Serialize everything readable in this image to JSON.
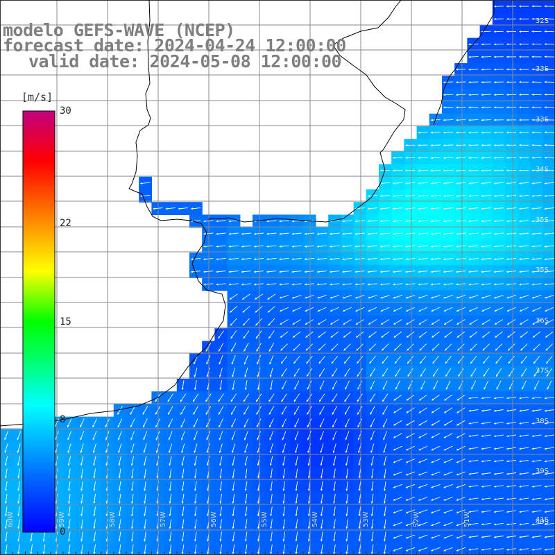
{
  "title": {
    "line1": "modelo GEFS-WAVE (NCEP)",
    "line2": "forecast date: 2024-04-24 12:00:00",
    "line3": "valid date: 2024-05-08 12:00:00"
  },
  "legend": {
    "unit": "[m/s]",
    "ticks": [
      {
        "label": "30",
        "value": 30
      },
      {
        "label": "22",
        "value": 22
      },
      {
        "label": "15",
        "value": 15
      },
      {
        "label": "8",
        "value": 8
      },
      {
        "label": "0",
        "value": 0
      }
    ],
    "range": [
      0,
      30
    ]
  },
  "colors": {
    "land": "#ffffff",
    "coast": "#000000",
    "grid": "#8a8a8a",
    "title": "#7f7f7f",
    "vector": "#ffffff",
    "scale": [
      "#0000ff",
      "#00a0ff",
      "#00ffff",
      "#00ff00",
      "#ffff00",
      "#ff8000",
      "#ff0000",
      "#c0007f"
    ]
  },
  "map": {
    "type": "wind vector field",
    "lat_labels": [
      "32S",
      "33S",
      "33S",
      "34S",
      "35S",
      "35S",
      "36S",
      "37S",
      "38S",
      "39S",
      "40S",
      "41S"
    ],
    "lon_labels": [
      "60W",
      "59W",
      "58W",
      "57W",
      "56W",
      "55W",
      "54W",
      "53W",
      "52W",
      "51W"
    ]
  }
}
